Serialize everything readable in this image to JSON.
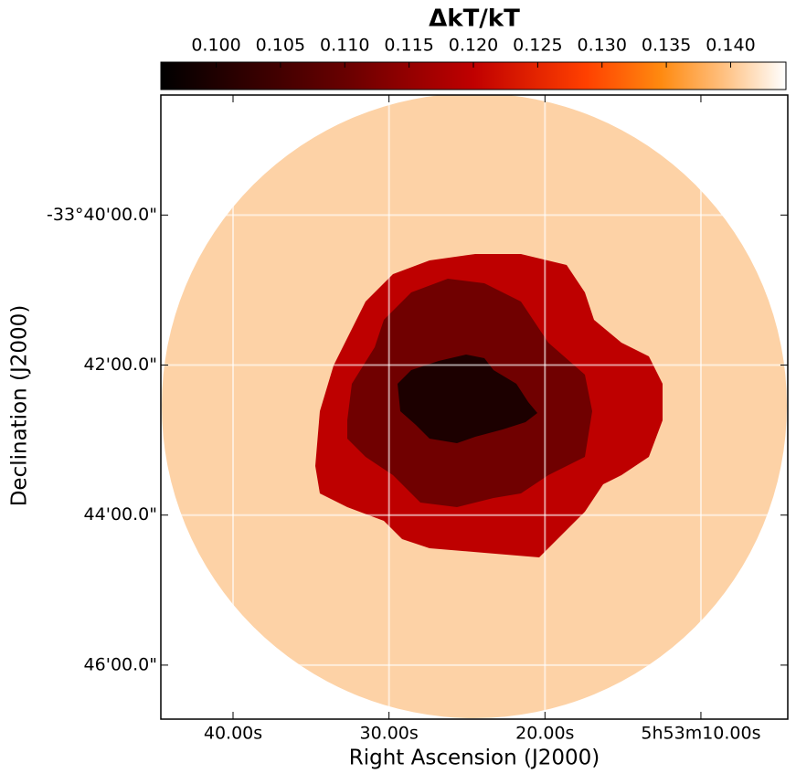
{
  "chart_data": {
    "type": "image",
    "xlabel": "Right Ascension (J2000)",
    "ylabel": "Declination (J2000)",
    "xlim": [
      44.63,
      4.43
    ],
    "xticks": [
      {
        "value": 40,
        "label": "40.00s"
      },
      {
        "value": 30,
        "label": "30.00s"
      },
      {
        "value": 20,
        "label": "20.00s"
      },
      {
        "value": 10,
        "label": "5h53m10.00s"
      }
    ],
    "ylim": [
      38.4,
      46.72
    ],
    "yticks": [
      {
        "value": 40,
        "label": "-33°40'00.0\""
      },
      {
        "value": 42,
        "label": "42'00.0\""
      },
      {
        "value": 44,
        "label": "44'00.0\""
      },
      {
        "value": 46,
        "label": "46'00.0\""
      }
    ],
    "grid": true,
    "colorbar": {
      "title": "ΔkT/kT",
      "clim": [
        0.0957,
        0.1443
      ],
      "ticks": [
        {
          "value": 0.1,
          "label": "0.100"
        },
        {
          "value": 0.105,
          "label": "0.105"
        },
        {
          "value": 0.11,
          "label": "0.110"
        },
        {
          "value": 0.115,
          "label": "0.115"
        },
        {
          "value": 0.12,
          "label": "0.120"
        },
        {
          "value": 0.125,
          "label": "0.125"
        },
        {
          "value": 0.13,
          "label": "0.130"
        },
        {
          "value": 0.135,
          "label": "0.135"
        },
        {
          "value": 0.14,
          "label": "0.140"
        }
      ]
    },
    "regions": [
      {
        "value": 0.139,
        "color": "#fdd2a6"
      },
      {
        "value": 0.121,
        "color": "#be0000"
      },
      {
        "value": 0.113,
        "color": "#700000"
      },
      {
        "value": 0.102,
        "color": "#1c0000"
      }
    ]
  }
}
